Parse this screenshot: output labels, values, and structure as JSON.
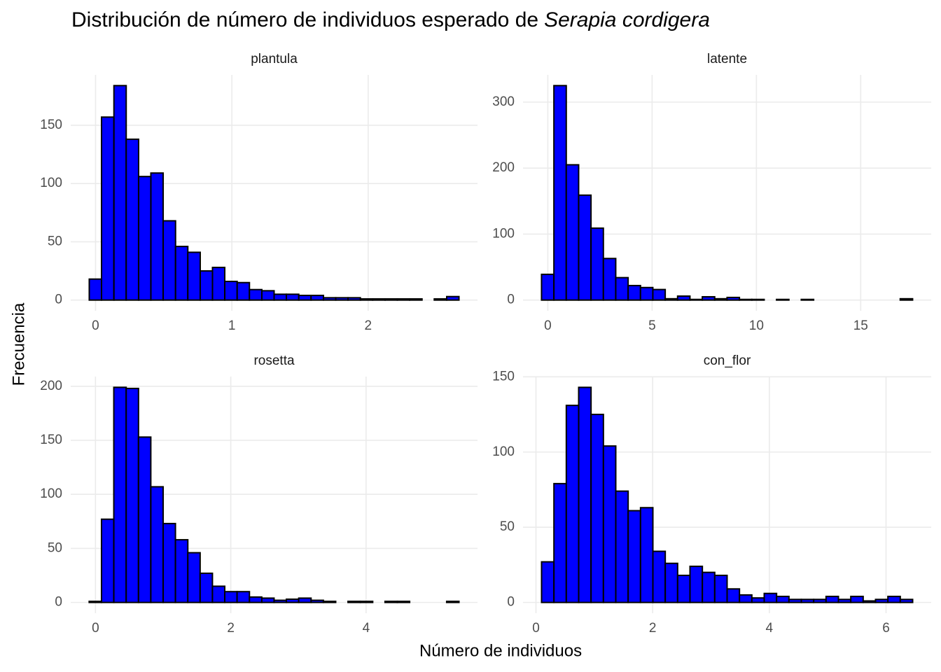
{
  "title": "Distribución de número de individuos esperado de",
  "title_italic": "Serapia cordigera",
  "x_label": "Número de individuos",
  "y_label": "Frecuencia",
  "chart_data": [
    {
      "type": "histogram",
      "title": "plantula",
      "color": "#0000ff",
      "edgecolor": "#000000",
      "grid": true,
      "bins": [
        -0.046,
        0.044,
        0.135,
        0.225,
        0.316,
        0.406,
        0.496,
        0.587,
        0.677,
        0.768,
        0.858,
        0.948,
        1.039,
        1.129,
        1.22,
        1.31,
        1.4,
        1.491,
        1.581,
        1.672,
        1.762,
        1.852,
        1.943,
        2.033,
        2.124,
        2.214,
        2.304,
        2.395,
        2.485,
        2.576,
        2.666
      ],
      "values": [
        18,
        157,
        184,
        138,
        106,
        109,
        68,
        46,
        41,
        25,
        28,
        16,
        15,
        9,
        8,
        5,
        5,
        4,
        4,
        2,
        2,
        2,
        1,
        1,
        1,
        1,
        1,
        0,
        1,
        3
      ],
      "xlim": [
        -0.182,
        2.802
      ],
      "ylim": [
        -9.2,
        193.2
      ],
      "xticks": [
        0,
        1,
        2
      ],
      "yticks": [
        0,
        50,
        100,
        150
      ]
    },
    {
      "type": "histogram",
      "title": "latente",
      "color": "#0000ff",
      "edgecolor": "#000000",
      "grid": true,
      "bins": [
        -0.302,
        0.291,
        0.884,
        1.477,
        2.07,
        2.663,
        3.256,
        3.849,
        4.442,
        5.035,
        5.628,
        6.221,
        6.814,
        7.407,
        8.0,
        8.593,
        9.186,
        9.779,
        10.372,
        10.965,
        11.558,
        12.151,
        12.744,
        13.337,
        13.93,
        14.523,
        15.116,
        15.709,
        16.302,
        16.895,
        17.488
      ],
      "values": [
        39,
        325,
        205,
        159,
        109,
        63,
        34,
        22,
        19,
        16,
        2,
        6,
        1,
        5,
        2,
        4,
        1,
        1,
        0,
        1,
        0,
        1,
        0,
        0,
        0,
        0,
        0,
        0,
        0,
        2
      ],
      "xlim": [
        -1.19,
        18.38
      ],
      "ylim": [
        -16.25,
        341.25
      ],
      "xticks": [
        0,
        5,
        10,
        15
      ],
      "yticks": [
        0,
        100,
        200,
        300
      ]
    },
    {
      "type": "histogram",
      "title": "rosetta",
      "color": "#0000ff",
      "edgecolor": "#000000",
      "grid": true,
      "bins": [
        -0.093,
        0.089,
        0.271,
        0.454,
        0.636,
        0.818,
        1.0,
        1.182,
        1.365,
        1.547,
        1.729,
        1.911,
        2.093,
        2.276,
        2.458,
        2.64,
        2.822,
        3.004,
        3.187,
        3.369,
        3.551,
        3.733,
        3.915,
        4.098,
        4.28,
        4.462,
        4.644,
        4.826,
        5.009,
        5.191,
        5.373
      ],
      "values": [
        1,
        77,
        199,
        198,
        153,
        107,
        73,
        58,
        46,
        27,
        15,
        10,
        10,
        5,
        4,
        2,
        3,
        4,
        2,
        1,
        0,
        1,
        1,
        0,
        1,
        1,
        0,
        0,
        0,
        1
      ],
      "xlim": [
        -0.366,
        5.647
      ],
      "ylim": [
        -9.95,
        208.95
      ],
      "xticks": [
        0,
        2,
        4
      ],
      "yticks": [
        0,
        50,
        100,
        150,
        200
      ]
    },
    {
      "type": "histogram",
      "title": "con_flor",
      "color": "#0000ff",
      "edgecolor": "#000000",
      "grid": true,
      "bins": [
        0.096,
        0.308,
        0.52,
        0.732,
        0.944,
        1.156,
        1.368,
        1.58,
        1.792,
        2.004,
        2.216,
        2.428,
        2.64,
        2.852,
        3.064,
        3.276,
        3.488,
        3.7,
        3.912,
        4.124,
        4.336,
        4.548,
        4.76,
        4.972,
        5.184,
        5.396,
        5.608,
        5.82,
        6.032,
        6.244,
        6.456
      ],
      "values": [
        27,
        79,
        131,
        143,
        125,
        104,
        74,
        61,
        63,
        34,
        26,
        18,
        24,
        20,
        18,
        9,
        5,
        3,
        6,
        4,
        2,
        2,
        2,
        4,
        2,
        4,
        1,
        2,
        4,
        2
      ],
      "xlim": [
        -0.222,
        6.774
      ],
      "ylim": [
        -7.15,
        150.15
      ],
      "xticks": [
        0,
        2,
        4,
        6
      ],
      "yticks": [
        0,
        50,
        100,
        150
      ]
    }
  ]
}
